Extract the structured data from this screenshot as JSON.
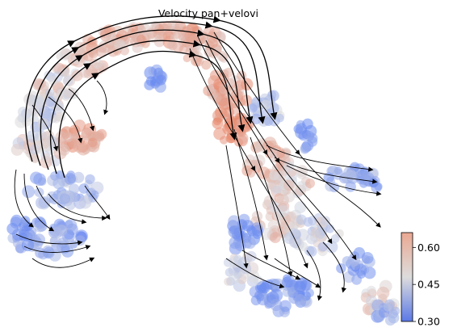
{
  "chart_data": {
    "type": "scatter",
    "subtype": "velocity-stream-embedding",
    "title": "Velocity pan+velovi",
    "xlabel": "",
    "ylabel": "",
    "axes_visible": false,
    "grid": false,
    "colormap": "coolwarm",
    "colorbar": {
      "range": [
        0.3,
        0.66
      ],
      "ticks": [
        0.3,
        0.45,
        0.6
      ],
      "tick_labels": [
        "0.30",
        "0.45",
        "0.60"
      ],
      "placement": "right"
    },
    "low_color": "#6a8af0",
    "mid_color": "#dcdde0",
    "high_color": "#e8866a"
  }
}
